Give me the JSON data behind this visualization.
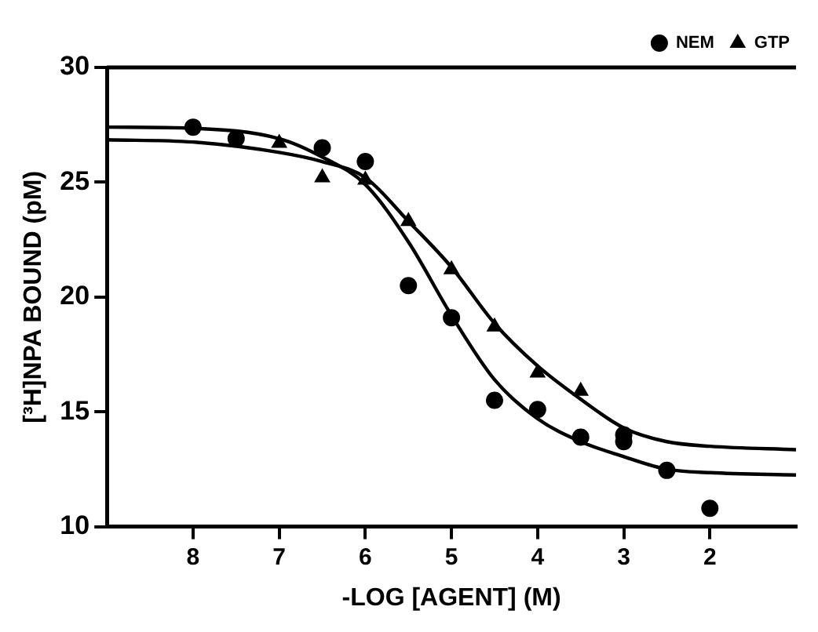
{
  "chart_data": {
    "type": "scatter",
    "xlabel": "-LOG [AGENT] (M)",
    "ylabel": "[³H]NPA BOUND (pM)",
    "xlim": [
      9,
      1
    ],
    "xticks": [
      8,
      7,
      6,
      5,
      4,
      3,
      2
    ],
    "ylim": [
      10,
      30
    ],
    "yticks": [
      10,
      15,
      20,
      25,
      30
    ],
    "grid": false,
    "legend": "top right",
    "series": [
      {
        "name": "NEM",
        "type": "scatter",
        "marker": "circle",
        "color": "#000000",
        "x": [
          8,
          7.5,
          6.5,
          6,
          5.5,
          5,
          4.5,
          4,
          3.5,
          3,
          3,
          2.5,
          2
        ],
        "values": [
          27.4,
          26.9,
          26.5,
          25.9,
          20.5,
          19.1,
          15.5,
          15.1,
          13.9,
          14.0,
          13.7,
          12.45,
          10.8
        ]
      },
      {
        "name": "GTP",
        "type": "scatter",
        "marker": "triangle",
        "color": "#000000",
        "x": [
          7,
          6.5,
          6,
          5.5,
          5,
          4.5,
          4,
          3.5
        ],
        "values": [
          26.7,
          25.2,
          25.1,
          23.3,
          21.2,
          18.7,
          16.7,
          15.9
        ]
      },
      {
        "type": "line",
        "marker": "none",
        "color": "#000000",
        "x": [
          9,
          8,
          7,
          6.5,
          6,
          5.5,
          5,
          4.5,
          4,
          3.5,
          3,
          2.5,
          2,
          1
        ],
        "values": [
          27.4,
          27.35,
          26.9,
          26.1,
          24.9,
          22.4,
          19.2,
          16.4,
          14.7,
          13.7,
          13.05,
          12.5,
          12.35,
          12.25
        ]
      },
      {
        "type": "line",
        "marker": "none",
        "color": "#000000",
        "x": [
          9,
          8,
          7,
          6.5,
          6,
          5.5,
          5,
          4.5,
          4,
          3.5,
          3,
          2.5,
          2,
          1
        ],
        "values": [
          26.85,
          26.75,
          26.3,
          25.9,
          25.2,
          23.3,
          21.3,
          18.85,
          17.0,
          15.55,
          14.3,
          13.7,
          13.5,
          13.35
        ]
      }
    ]
  }
}
